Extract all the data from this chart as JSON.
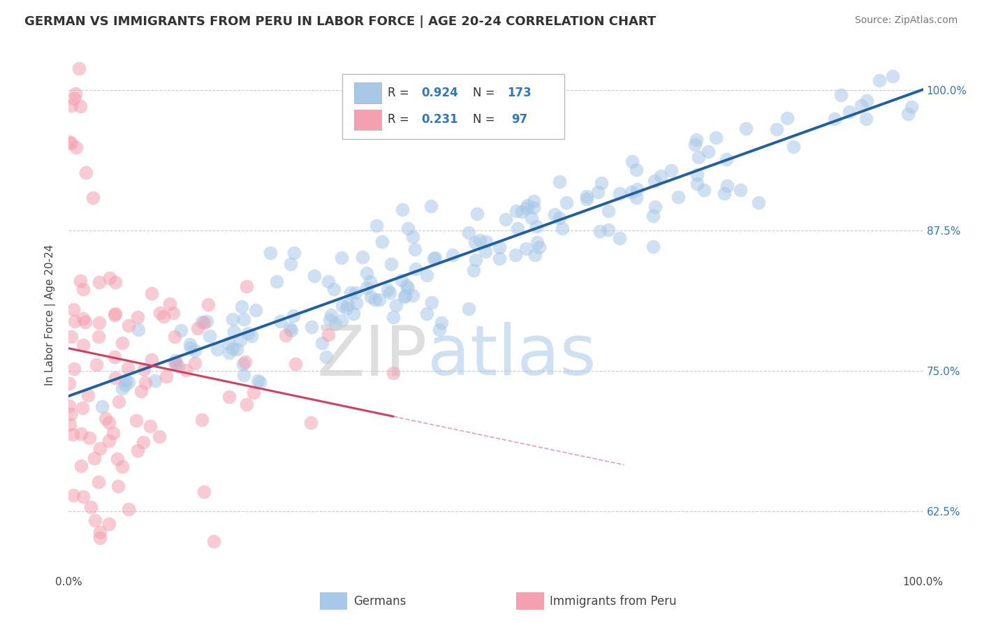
{
  "title": "GERMAN VS IMMIGRANTS FROM PERU IN LABOR FORCE | AGE 20-24 CORRELATION CHART",
  "source": "Source: ZipAtlas.com",
  "ylabel": "In Labor Force | Age 20-24",
  "y_tick_labels_right": [
    "62.5%",
    "75.0%",
    "87.5%",
    "100.0%"
  ],
  "y_tick_values_right": [
    0.625,
    0.75,
    0.875,
    1.0
  ],
  "legend_labels": [
    "Germans",
    "Immigrants from Peru"
  ],
  "R_blue": 0.924,
  "N_blue": 173,
  "R_pink": 0.231,
  "N_pink": 97,
  "blue_color": "#a8c8e8",
  "pink_color": "#f4a0b0",
  "blue_line_color": "#2060a0",
  "pink_line_color": "#d04060",
  "background_color": "#ffffff",
  "grid_color": "#cccccc",
  "title_fontsize": 13,
  "source_fontsize": 10,
  "xlim": [
    0.0,
    1.0
  ],
  "ylim": [
    0.57,
    1.03
  ]
}
